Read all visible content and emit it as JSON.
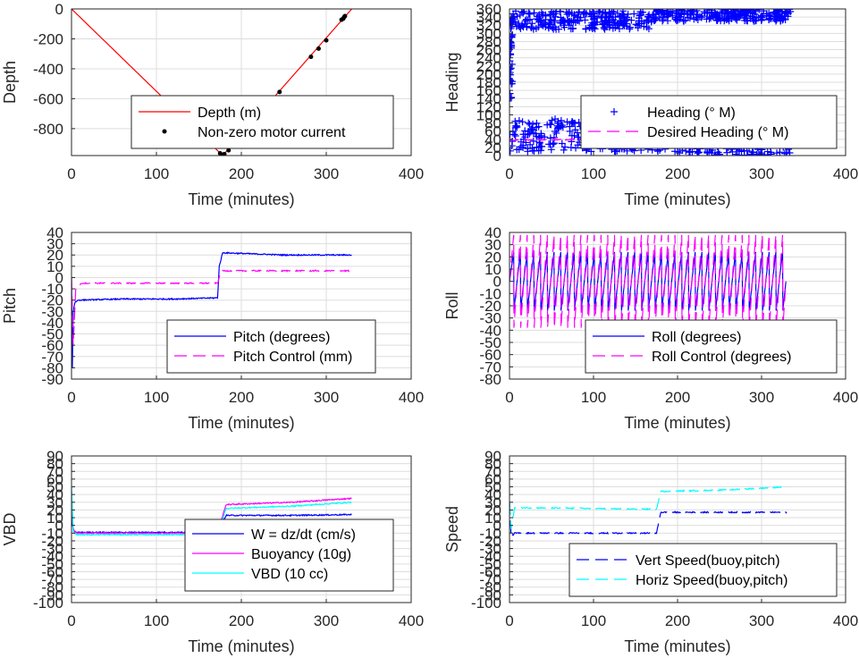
{
  "chart_data": [
    {
      "type": "line",
      "ylabel": "Depth",
      "xlabel": "Time (minutes)",
      "xlim": [
        0,
        400
      ],
      "ylim": [
        -980,
        0
      ],
      "xticks": [
        "0",
        "100",
        "200",
        "300",
        "400"
      ],
      "yticks": [
        "0",
        "-200",
        "-400",
        "-600",
        "-800"
      ],
      "ytick_values": [
        0,
        -200,
        -400,
        -600,
        -800
      ],
      "grid": true,
      "legend": "lower-right",
      "series": [
        {
          "name": "Depth (m)",
          "color": "#ff0000",
          "style": "solid",
          "marker": "none",
          "x": [
            0,
            178,
            330
          ],
          "y": [
            0,
            -980,
            0
          ]
        },
        {
          "name": "Non-zero motor current",
          "color": "#000000",
          "style": "none",
          "marker": "dot",
          "x": [
            175,
            177,
            178,
            179,
            180,
            185,
            245,
            282,
            291,
            300,
            318,
            320,
            321,
            322
          ],
          "y": [
            -965,
            -975,
            -978,
            -975,
            -970,
            -945,
            -555,
            -320,
            -265,
            -210,
            -72,
            -65,
            -55,
            -48
          ]
        }
      ]
    },
    {
      "type": "scatter",
      "ylabel": "Heading",
      "xlabel": "Time (minutes)",
      "xlim": [
        0,
        400
      ],
      "ylim": [
        0,
        360
      ],
      "xticks": [
        "0",
        "100",
        "200",
        "300",
        "400"
      ],
      "yticks": [
        "0",
        "20",
        "40",
        "60",
        "80",
        "100",
        "120",
        "140",
        "160",
        "180",
        "200",
        "220",
        "240",
        "260",
        "280",
        "300",
        "320",
        "340",
        "360"
      ],
      "ytick_values": [
        0,
        20,
        40,
        60,
        80,
        100,
        120,
        140,
        160,
        180,
        200,
        220,
        240,
        260,
        280,
        300,
        320,
        340,
        360
      ],
      "grid": true,
      "legend": "lower-right",
      "series": [
        {
          "name": "Heading (° M)",
          "color": "#0000ff",
          "marker": "+",
          "bands": [
            [
              0,
              170,
              310,
              355
            ],
            [
              170,
              335,
              330,
              360
            ],
            [
              0,
              200,
              10,
              90
            ],
            [
              200,
              335,
              0,
              70
            ]
          ]
        },
        {
          "name": "Desired Heading (° M)",
          "color": "#ff00ff",
          "style": "dashed",
          "x": [
            0,
            100,
            200,
            335
          ],
          "y": [
            38,
            40,
            25,
            30
          ]
        }
      ]
    },
    {
      "type": "line",
      "ylabel": "Pitch",
      "xlabel": "Time (minutes)",
      "xlim": [
        0,
        400
      ],
      "ylim": [
        -90,
        40
      ],
      "xticks": [
        "0",
        "100",
        "200",
        "300",
        "400"
      ],
      "yticks": [
        "40",
        "30",
        "20",
        "10",
        "0",
        "-10",
        "-20",
        "-30",
        "-40",
        "-50",
        "-60",
        "-70",
        "-80",
        "-90"
      ],
      "ytick_values": [
        40,
        30,
        20,
        10,
        0,
        -10,
        -20,
        -30,
        -40,
        -50,
        -60,
        -70,
        -80,
        -90
      ],
      "grid": true,
      "legend": "lower-right",
      "series": [
        {
          "name": "Pitch (degrees)",
          "color": "#0000ff",
          "style": "solid",
          "x": [
            0,
            1,
            2,
            4,
            8,
            60,
            120,
            172,
            174,
            178,
            250,
            330
          ],
          "y": [
            0,
            -80,
            -30,
            -22,
            -20,
            -19,
            -19,
            -18,
            10,
            22,
            20,
            20
          ]
        },
        {
          "name": "Pitch Control (mm)",
          "color": "#ff00ff",
          "style": "dashed",
          "x": [
            0,
            2,
            5,
            12,
            172,
            176,
            250,
            330
          ],
          "y": [
            0,
            -60,
            -10,
            -5,
            -5,
            6,
            6,
            6
          ]
        }
      ]
    },
    {
      "type": "line",
      "ylabel": "Roll",
      "xlabel": "Time (minutes)",
      "xlim": [
        0,
        400
      ],
      "ylim": [
        -80,
        40
      ],
      "xticks": [
        "0",
        "100",
        "200",
        "300",
        "400"
      ],
      "yticks": [
        "40",
        "30",
        "20",
        "10",
        "0",
        "-10",
        "-20",
        "-30",
        "-40",
        "-50",
        "-60",
        "-70",
        "-80"
      ],
      "ytick_values": [
        40,
        30,
        20,
        10,
        0,
        -10,
        -20,
        -30,
        -40,
        -50,
        -60,
        -70,
        -80
      ],
      "grid": true,
      "legend": "lower-right",
      "series": [
        {
          "name": "Roll (degrees)",
          "color": "#0000ff",
          "style": "solid",
          "oscillation": {
            "x0": 5,
            "x1": 330,
            "period": 8,
            "amp": 24,
            "base": 0
          }
        },
        {
          "name": "Roll Control (degrees)",
          "color": "#ff00ff",
          "style": "dashed",
          "oscillation": {
            "x0": 5,
            "x1": 330,
            "period": 8,
            "amp": 38,
            "base": 0
          }
        }
      ]
    },
    {
      "type": "line",
      "ylabel": "VBD",
      "xlabel": "Time (minutes)",
      "xlim": [
        0,
        400
      ],
      "ylim": [
        -100,
        90
      ],
      "xticks": [
        "0",
        "100",
        "200",
        "300",
        "400"
      ],
      "yticks": [
        "90",
        "80",
        "70",
        "60",
        "50",
        "40",
        "30",
        "20",
        "10",
        "0",
        "-10",
        "-20",
        "-30",
        "-40",
        "-50",
        "-60",
        "-70",
        "-80",
        "-90",
        "-100"
      ],
      "ytick_values": [
        90,
        80,
        70,
        60,
        50,
        40,
        30,
        20,
        10,
        0,
        -10,
        -20,
        -30,
        -40,
        -50,
        -60,
        -70,
        -80,
        -90,
        -100
      ],
      "grid": true,
      "legend": "lower-right",
      "series": [
        {
          "name": "W = dz/dt (cm/s)",
          "color": "#0000ff",
          "style": "solid",
          "x": [
            0,
            1,
            3,
            6,
            170,
            174,
            182,
            260,
            330
          ],
          "y": [
            40,
            0,
            -8,
            -9,
            -9,
            -5,
            13,
            13,
            14
          ]
        },
        {
          "name": "Buoyancy (10g)",
          "color": "#ff00ff",
          "style": "solid",
          "x": [
            0,
            2,
            6,
            170,
            176,
            182,
            260,
            330
          ],
          "y": [
            45,
            -5,
            -10,
            -10,
            5,
            27,
            30,
            35
          ]
        },
        {
          "name": "VBD (10 cc)",
          "color": "#00ffff",
          "style": "solid",
          "x": [
            0,
            2,
            6,
            170,
            176,
            182,
            260,
            330
          ],
          "y": [
            50,
            -8,
            -12,
            -12,
            2,
            22,
            25,
            30
          ]
        }
      ]
    },
    {
      "type": "line",
      "ylabel": "Speed",
      "xlabel": "Time (minutes)",
      "xlim": [
        0,
        400
      ],
      "ylim": [
        -100,
        90
      ],
      "xticks": [
        "0",
        "100",
        "200",
        "300",
        "400"
      ],
      "yticks": [
        "90",
        "80",
        "70",
        "60",
        "50",
        "40",
        "30",
        "20",
        "10",
        "0",
        "-10",
        "-20",
        "-30",
        "-40",
        "-50",
        "-60",
        "-70",
        "-80",
        "-90",
        "-100"
      ],
      "ytick_values": [
        90,
        80,
        70,
        60,
        50,
        40,
        30,
        20,
        10,
        0,
        -10,
        -20,
        -30,
        -40,
        -50,
        -60,
        -70,
        -80,
        -90,
        -100
      ],
      "grid": true,
      "legend": "lower-right",
      "series": [
        {
          "name": "Vert Speed(buoy,pitch)",
          "color": "#0000ff",
          "style": "dashed",
          "x": [
            0,
            2,
            6,
            170,
            175,
            180,
            260,
            330
          ],
          "y": [
            30,
            -15,
            -10,
            -10,
            -10,
            17,
            17,
            17
          ]
        },
        {
          "name": "Horiz Speed(buoy,pitch)",
          "color": "#00ffff",
          "style": "dashed",
          "x": [
            0,
            2,
            6,
            170,
            175,
            180,
            260,
            330
          ],
          "y": [
            30,
            -5,
            23,
            21,
            21,
            44,
            46,
            50
          ]
        }
      ]
    }
  ]
}
